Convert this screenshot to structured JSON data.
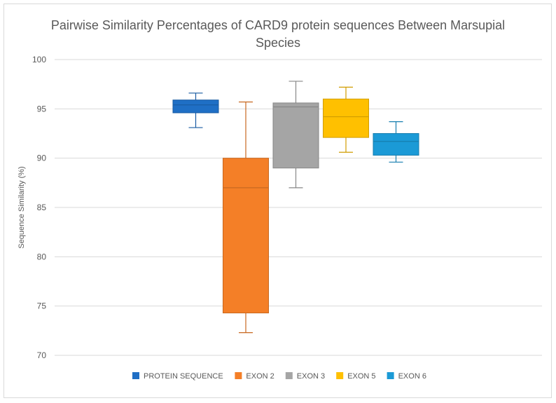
{
  "chart_data": {
    "type": "box",
    "title": "Pairwise Similarity Percentages of CARD9 protein sequences Between Marsupial Species",
    "title_lines": [
      "Pairwise Similarity Percentages of CARD9 protein sequences Between Marsupial",
      "Species"
    ],
    "xlabel": "",
    "ylabel": "Sequence Similarity (%)",
    "ylim": [
      70,
      100
    ],
    "yticks": [
      "70",
      "75",
      "80",
      "85",
      "90",
      "95",
      "100"
    ],
    "grid": true,
    "legend_position": "bottom",
    "series": [
      {
        "name": "PROTEIN SEQUENCE",
        "color": "#1f6fc5",
        "min": 93.1,
        "q1": 94.6,
        "median": 95.4,
        "q3": 95.9,
        "max": 96.6
      },
      {
        "name": "EXON 2",
        "color": "#f47f27",
        "min": 72.3,
        "q1": 74.3,
        "median": 87.0,
        "q3": 90.0,
        "max": 95.7
      },
      {
        "name": "EXON 3",
        "color": "#a5a5a5",
        "min": 87.0,
        "q1": 89.0,
        "median": 95.2,
        "q3": 95.6,
        "max": 97.8
      },
      {
        "name": "EXON 5",
        "color": "#ffc000",
        "min": 90.6,
        "q1": 92.1,
        "median": 94.2,
        "q3": 96.0,
        "max": 97.2
      },
      {
        "name": "EXON 6",
        "color": "#1b9ad6",
        "min": 89.6,
        "q1": 90.3,
        "median": 91.7,
        "q3": 92.5,
        "max": 93.7
      }
    ]
  }
}
